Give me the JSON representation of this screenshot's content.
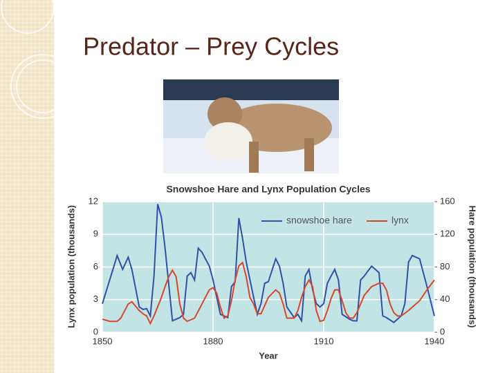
{
  "slide_title": "Predator – Prey Cycles",
  "chart_data": {
    "type": "line",
    "title": "Snowshoe Hare and Lynx Population Cycles",
    "xlabel": "Year",
    "ylabel": "Lynx population (thousands)",
    "y2label": "Hare population (thousands)",
    "xlim": [
      1850,
      1940
    ],
    "xticks": [
      1850,
      1880,
      1910,
      1940
    ],
    "ylim": [
      0,
      12
    ],
    "yticks": [
      0,
      3,
      6,
      9,
      12
    ],
    "y2lim": [
      0,
      160
    ],
    "y2ticks": [
      0,
      40,
      80,
      120,
      160
    ],
    "grid": true,
    "legend": "top-right",
    "series": [
      {
        "name": "snowshoe hare",
        "color": "#2f4fa8",
        "axis": "y2",
        "x": [
          1850,
          1853,
          1854,
          1855.5,
          1857,
          1858,
          1860,
          1861,
          1862,
          1863,
          1864,
          1865,
          1866,
          1867,
          1869,
          1871,
          1872,
          1873,
          1874,
          1875,
          1876,
          1877,
          1879,
          1880,
          1882,
          1884,
          1885,
          1886,
          1887,
          1888,
          1889,
          1891,
          1892,
          1893,
          1894,
          1895,
          1897,
          1898,
          1899,
          1900,
          1902,
          1903,
          1904,
          1905,
          1906,
          1907,
          1908,
          1909,
          1910,
          1911,
          1912,
          1913,
          1914,
          1915,
          1917,
          1918,
          1919,
          1920,
          1921,
          1923,
          1925,
          1926,
          1927,
          1929,
          1931,
          1932,
          1933,
          1934,
          1936,
          1938,
          1940
        ],
        "values": [
          35,
          79,
          94,
          77,
          92,
          77,
          31,
          28,
          29,
          20,
          69,
          157,
          141,
          103,
          14,
          18,
          22,
          69,
          73,
          64,
          103,
          98,
          81,
          64,
          22,
          18,
          56,
          62,
          140,
          115,
          86,
          43,
          22,
          35,
          60,
          62,
          90,
          81,
          60,
          31,
          18,
          22,
          14,
          69,
          77,
          52,
          35,
          31,
          35,
          60,
          69,
          77,
          64,
          22,
          16,
          14,
          14,
          64,
          69,
          81,
          73,
          20,
          18,
          12,
          20,
          35,
          86,
          94,
          90,
          56,
          20
        ]
      },
      {
        "name": "lynx",
        "color": "#d9452b",
        "x": [
          1850,
          1852,
          1854,
          1855,
          1857,
          1858,
          1860,
          1861,
          1862,
          1863,
          1864,
          1866,
          1867,
          1868,
          1869,
          1870,
          1871,
          1872,
          1873,
          1875,
          1877,
          1879,
          1880,
          1881,
          1882,
          1883,
          1884,
          1885,
          1886,
          1887,
          1888,
          1889,
          1890,
          1891,
          1892,
          1893,
          1895,
          1897,
          1898,
          1899,
          1900,
          1902,
          1903,
          1904,
          1905,
          1906,
          1907,
          1908,
          1909,
          1910,
          1911,
          1912,
          1913,
          1914,
          1915,
          1916,
          1917,
          1918,
          1919,
          1920,
          1921,
          1923,
          1925,
          1926,
          1927,
          1928,
          1929,
          1930,
          1931,
          1933,
          1936,
          1938,
          1940
        ],
        "values": [
          1.2,
          1.0,
          1.0,
          1.3,
          2.6,
          2.8,
          2.0,
          1.7,
          1.5,
          0.8,
          1.5,
          3.2,
          4.2,
          5.1,
          5.7,
          5.1,
          2.6,
          1.3,
          1.0,
          1.3,
          2.6,
          3.9,
          4.1,
          3.6,
          2.3,
          1.3,
          1.5,
          2.9,
          4.8,
          6.1,
          6.4,
          5.1,
          3.2,
          2.6,
          1.7,
          1.7,
          3.2,
          3.9,
          3.6,
          2.6,
          1.3,
          1.3,
          2.0,
          3.2,
          4.2,
          4.8,
          4.2,
          2.0,
          1.0,
          1.1,
          2.0,
          3.1,
          3.9,
          3.9,
          2.9,
          1.8,
          1.3,
          1.3,
          1.8,
          2.6,
          3.4,
          4.2,
          4.5,
          4.5,
          3.9,
          2.6,
          1.8,
          1.5,
          1.5,
          2.0,
          2.9,
          3.9,
          4.8
        ]
      }
    ]
  }
}
